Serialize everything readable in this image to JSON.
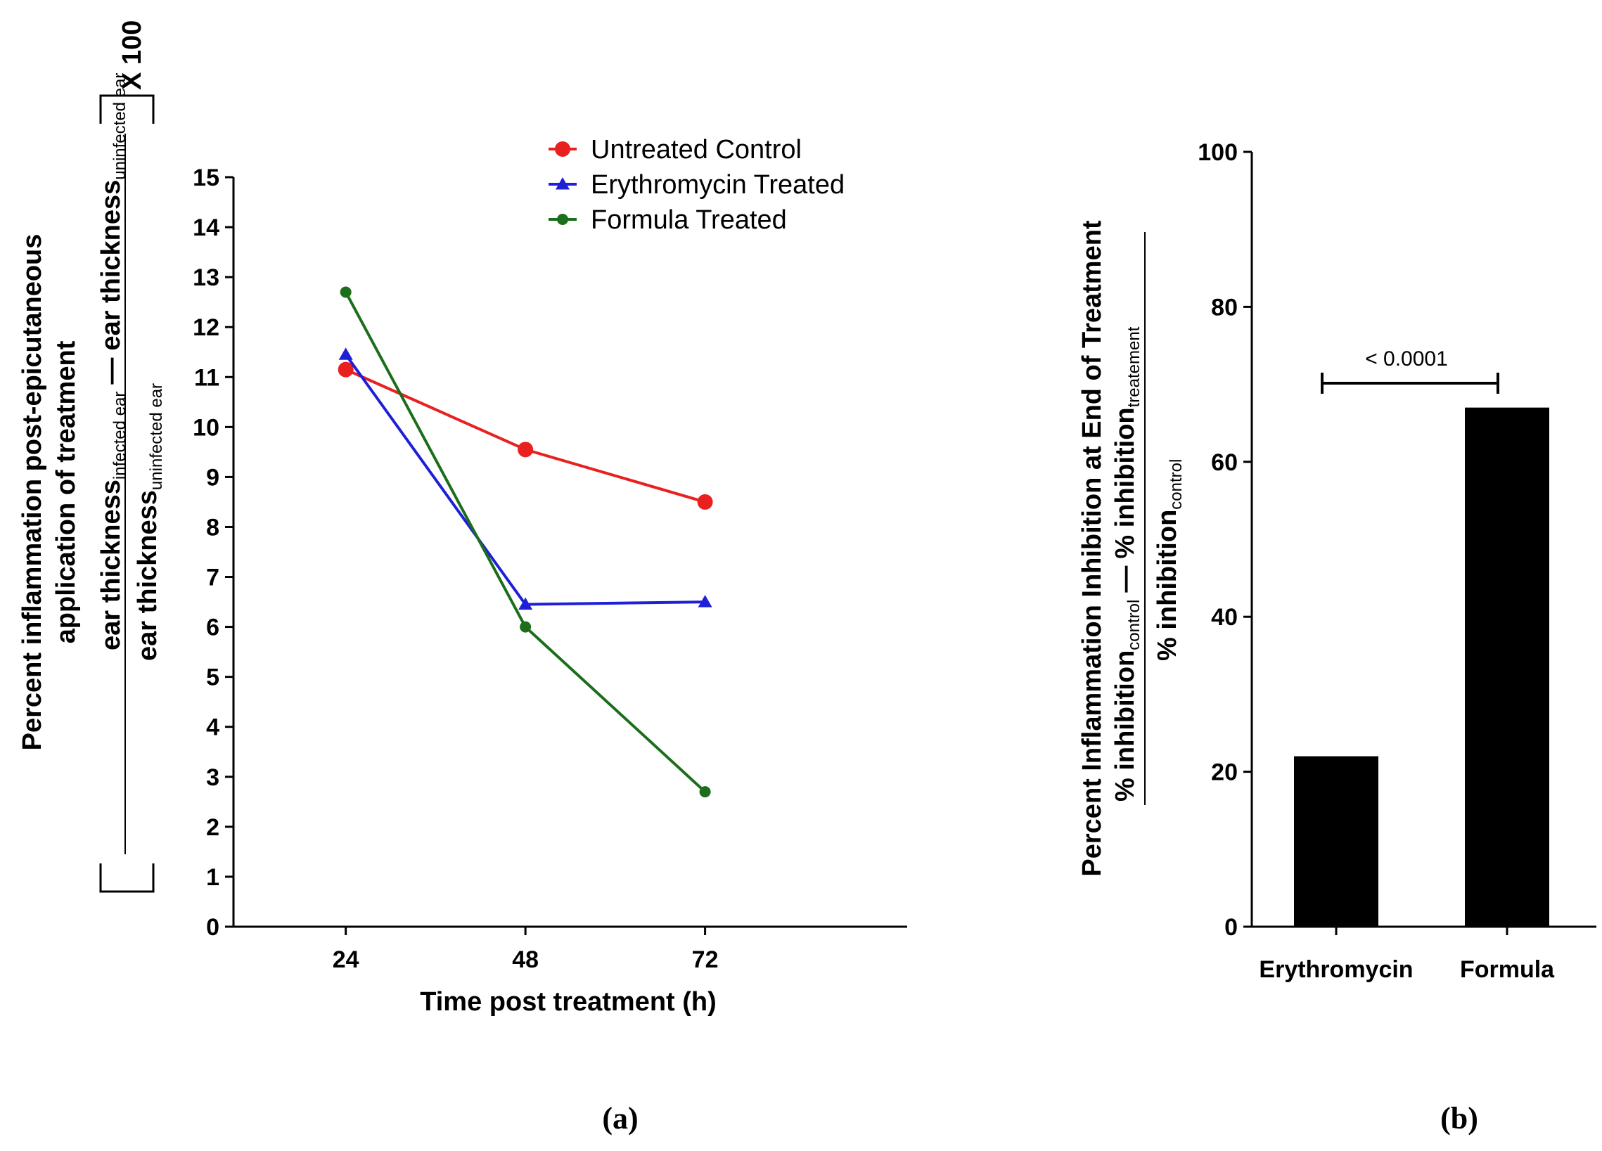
{
  "chart_data": [
    {
      "type": "line",
      "panel_label": "(a)",
      "x": [
        24,
        48,
        72
      ],
      "xlabel": "Time post treatment (h)",
      "ylabel": {
        "line1": "Percent inflammation post-epicutaneous",
        "line2": "application of treatment",
        "numerator_a": "ear thickness",
        "numerator_a_sub": "infected ear",
        "numerator_minus": "—",
        "numerator_b": "ear thickness",
        "numerator_b_sub": "uninfected ear",
        "denominator": "ear thickness",
        "denominator_sub": "uninfected ear",
        "multiplier": "X 100"
      },
      "ylim": [
        0,
        15
      ],
      "xticks": [
        "24",
        "48",
        "72"
      ],
      "yticks": [
        "0",
        "1",
        "2",
        "3",
        "4",
        "5",
        "6",
        "7",
        "8",
        "9",
        "10",
        "11",
        "12",
        "13",
        "14",
        "15"
      ],
      "legend_position": "top",
      "series": [
        {
          "name": "Untreated Control",
          "color": "#e8201f",
          "marker": "circle",
          "values": [
            11.15,
            9.55,
            8.5
          ]
        },
        {
          "name": "Erythromycin Treated",
          "color": "#1f1fd8",
          "marker": "triangle",
          "values": [
            11.45,
            6.45,
            6.5
          ]
        },
        {
          "name": "Formula Treated",
          "color": "#1b6e1b",
          "marker": "circle",
          "values": [
            12.7,
            6.0,
            2.7
          ]
        }
      ]
    },
    {
      "type": "bar",
      "panel_label": "(b)",
      "categories": [
        "Erythromycin",
        "Formula"
      ],
      "values": [
        22,
        67
      ],
      "color": "#000000",
      "ylim": [
        0,
        100
      ],
      "yticks": [
        "0",
        "20",
        "40",
        "60",
        "80",
        "100"
      ],
      "ylabel": {
        "line1": "Percent Inflammation Inhibition at  End of Treatment",
        "numerator_a": "% inhibition",
        "numerator_a_sub": "control",
        "numerator_minus": "—",
        "numerator_b": "% inhibition",
        "numerator_b_sub": "treatement",
        "denominator": "% inhibition",
        "denominator_sub": "control"
      },
      "significance": {
        "from": "Erythromycin",
        "to": "Formula",
        "label": "< 0.0001"
      }
    }
  ]
}
